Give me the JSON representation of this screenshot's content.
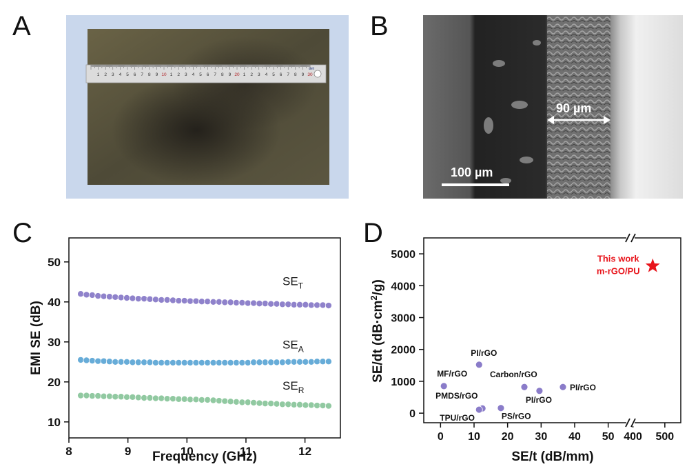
{
  "panels": {
    "a": {
      "letter": "A"
    },
    "b": {
      "letter": "B",
      "scale_bar_label": "100 µm",
      "thickness_label": "90 µm"
    },
    "c": {
      "letter": "C"
    },
    "d": {
      "letter": "D"
    }
  },
  "photo": {
    "ruler_brand": "deli",
    "ruler_cm_labels": [
      "1",
      "2",
      "3",
      "4",
      "5",
      "6",
      "7",
      "8",
      "9",
      "10",
      "1",
      "2",
      "3",
      "4",
      "5",
      "6",
      "7",
      "8",
      "9",
      "20",
      "1",
      "2",
      "3",
      "4",
      "5",
      "6",
      "7",
      "8",
      "9",
      "30"
    ],
    "colors": {
      "background": "#c9d7ec",
      "film": "#4e4a37",
      "ruler": "#dcdcdc"
    }
  },
  "chart_data": [
    {
      "type": "scatter",
      "xlabel": "Frequency (GHz)",
      "ylabel": "EMI SE (dB)",
      "xlim": [
        8,
        12.6
      ],
      "ylim": [
        6,
        56
      ],
      "xticks": [
        8,
        9,
        10,
        11,
        12
      ],
      "yticks": [
        10,
        20,
        30,
        40,
        50
      ],
      "x_start": 8.2,
      "x_end": 12.4,
      "series": [
        {
          "name": "SE",
          "subscript": "T",
          "color": "#8a7cc9",
          "values": [
            42.0,
            41.8,
            41.7,
            41.5,
            41.4,
            41.3,
            41.2,
            41.1,
            41.0,
            40.9,
            40.8,
            40.8,
            40.7,
            40.6,
            40.5,
            40.5,
            40.4,
            40.3,
            40.3,
            40.2,
            40.2,
            40.1,
            40.1,
            40.0,
            40.0,
            39.9,
            39.9,
            39.8,
            39.8,
            39.7,
            39.7,
            39.6,
            39.6,
            39.5,
            39.5,
            39.4,
            39.4,
            39.3,
            39.3,
            39.3,
            39.2,
            39.2,
            39.2,
            39.1
          ]
        },
        {
          "name": "SE",
          "subscript": "A",
          "color": "#5fa8d6",
          "values": [
            25.5,
            25.4,
            25.3,
            25.2,
            25.2,
            25.1,
            25.0,
            25.0,
            25.0,
            24.9,
            24.9,
            24.9,
            24.9,
            24.8,
            24.8,
            24.8,
            24.8,
            24.8,
            24.8,
            24.8,
            24.8,
            24.8,
            24.8,
            24.8,
            24.8,
            24.8,
            24.8,
            24.8,
            24.8,
            24.8,
            24.9,
            24.9,
            24.9,
            24.9,
            24.9,
            24.9,
            25.0,
            25.0,
            25.0,
            25.0,
            25.0,
            25.1,
            25.1,
            25.1
          ]
        },
        {
          "name": "SE",
          "subscript": "R",
          "color": "#8cc79d",
          "values": [
            16.6,
            16.6,
            16.5,
            16.5,
            16.4,
            16.4,
            16.3,
            16.3,
            16.2,
            16.2,
            16.1,
            16.0,
            16.0,
            15.9,
            15.9,
            15.8,
            15.8,
            15.7,
            15.7,
            15.6,
            15.6,
            15.5,
            15.5,
            15.4,
            15.3,
            15.2,
            15.1,
            15.0,
            14.9,
            14.9,
            14.8,
            14.7,
            14.6,
            14.6,
            14.5,
            14.4,
            14.4,
            14.3,
            14.3,
            14.2,
            14.2,
            14.1,
            14.1,
            14.0
          ]
        }
      ]
    },
    {
      "type": "scatter",
      "xlabel": "SE/t (dB/mm)",
      "ylabel": "SE/dt (dB·cm²/g)",
      "ylabel_parts": {
        "main": "SE/dt (dB·cm",
        "sup": "2",
        "tail": "/g)"
      },
      "xlim": [
        -5,
        550
      ],
      "axis_break_at": [
        55,
        400
      ],
      "ylim": [
        -300,
        5500
      ],
      "xticks": [
        0,
        10,
        20,
        30,
        40,
        50,
        400,
        500
      ],
      "yticks": [
        0,
        1000,
        2000,
        3000,
        4000,
        5000
      ],
      "points": [
        {
          "label": "PI/rGO",
          "x": 11.5,
          "y": 1520
        },
        {
          "label": "MF/rGO",
          "x": 1,
          "y": 850
        },
        {
          "label": "Carbon/rGO",
          "x": 25,
          "y": 820
        },
        {
          "label": "PI/rGO",
          "x": 29.5,
          "y": 700
        },
        {
          "label": "PI/rGO",
          "x": 36.5,
          "y": 820
        },
        {
          "label": "PMDS/rGO",
          "x": 12.5,
          "y": 150
        },
        {
          "label": "TPU/rGO",
          "x": 11.5,
          "y": 110
        },
        {
          "label": "PS/rGO",
          "x": 18,
          "y": 160
        }
      ],
      "highlight": {
        "label_line1": "This work",
        "label_line2": "m-rGO/PU",
        "x": 462,
        "y": 4620,
        "color": "#e8141b"
      },
      "point_color": "#8a7cc9"
    }
  ]
}
